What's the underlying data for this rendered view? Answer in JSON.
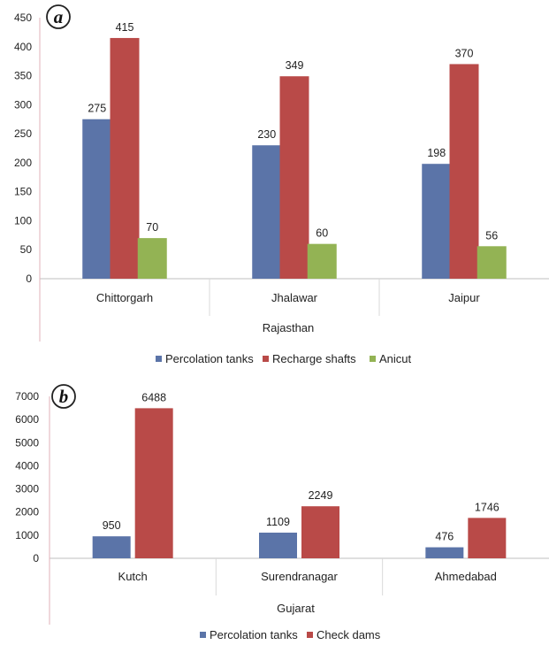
{
  "chart_data": [
    {
      "type": "bar",
      "panel_label": "a",
      "group_label": "Rajasthan",
      "categories": [
        "Chittorgarh",
        "Jhalawar",
        "Jaipur"
      ],
      "series": [
        {
          "name": "Percolation tanks",
          "color": "#5b74a8",
          "values": [
            275,
            230,
            198
          ]
        },
        {
          "name": "Recharge shafts",
          "color": "#b94a48",
          "values": [
            415,
            349,
            370
          ]
        },
        {
          "name": "Anicut",
          "color": "#93b354",
          "values": [
            70,
            60,
            56
          ]
        }
      ],
      "ylim": [
        0,
        450
      ],
      "yticks": [
        0,
        50,
        100,
        150,
        200,
        250,
        300,
        350,
        400,
        450
      ],
      "legend_position": "bottom",
      "grid": false
    },
    {
      "type": "bar",
      "panel_label": "b",
      "group_label": "Gujarat",
      "categories": [
        "Kutch",
        "Surendranagar",
        "Ahmedabad"
      ],
      "series": [
        {
          "name": "Percolation tanks",
          "color": "#5b74a8",
          "values": [
            950,
            1109,
            476
          ]
        },
        {
          "name": "Check dams",
          "color": "#b94a48",
          "values": [
            6488,
            2249,
            1746
          ]
        }
      ],
      "ylim": [
        0,
        7000
      ],
      "yticks": [
        0,
        1000,
        2000,
        3000,
        4000,
        5000,
        6000,
        7000
      ],
      "legend_position": "bottom",
      "grid": false
    }
  ]
}
